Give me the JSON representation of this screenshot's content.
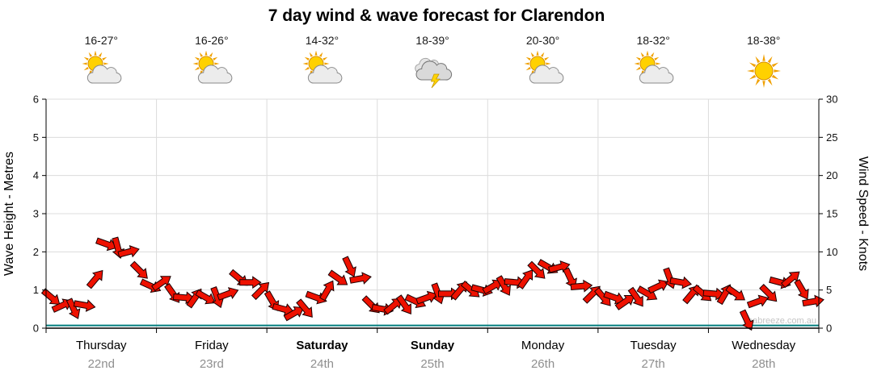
{
  "title": "7 day wind & wave forecast for Clarendon",
  "watermark": "seabreeze.com.au",
  "colors": {
    "wind_arrow": "#ee1100",
    "wind_arrow_outline": "#1a0000",
    "wave_line": "#007d7d",
    "grid": "#dcdcdc",
    "axis": "#000000",
    "date_text": "#8f8f8f",
    "day_text": "#000000",
    "watermark_text": "#c4c4c4"
  },
  "days": [
    {
      "name": "Thursday",
      "date": "22nd",
      "temp": "16-27°",
      "icon": "sun-cloud",
      "weekend": false
    },
    {
      "name": "Friday",
      "date": "23rd",
      "temp": "16-26°",
      "icon": "sun-cloud",
      "weekend": false
    },
    {
      "name": "Saturday",
      "date": "24th",
      "temp": "14-32°",
      "icon": "sun-cloud",
      "weekend": true
    },
    {
      "name": "Sunday",
      "date": "25th",
      "temp": "18-39°",
      "icon": "storm",
      "weekend": true
    },
    {
      "name": "Monday",
      "date": "26th",
      "temp": "20-30°",
      "icon": "sun-cloud",
      "weekend": false
    },
    {
      "name": "Tuesday",
      "date": "27th",
      "temp": "18-32°",
      "icon": "sun-cloud",
      "weekend": false
    },
    {
      "name": "Wednesday",
      "date": "28th",
      "temp": "18-38°",
      "icon": "sun",
      "weekend": false
    }
  ],
  "chart_data": {
    "type": "line",
    "title": "7 day wind & wave forecast for Clarendon",
    "x_axis": {
      "days": [
        "Thursday",
        "Friday",
        "Saturday",
        "Sunday",
        "Monday",
        "Tuesday",
        "Wednesday"
      ],
      "dates": [
        "22nd",
        "23rd",
        "24th",
        "25th",
        "26th",
        "27th",
        "28th"
      ],
      "range_days": [
        0,
        7
      ]
    },
    "y_left": {
      "label": "Wave Height - Metres",
      "range": [
        0,
        6
      ],
      "ticks": [
        0,
        1,
        2,
        3,
        4,
        5,
        6
      ]
    },
    "y_right": {
      "label": "Wind Speed - Knots",
      "range": [
        0,
        30
      ],
      "ticks": [
        0,
        5,
        10,
        15,
        20,
        25,
        30
      ]
    },
    "grid": true,
    "series": [
      {
        "name": "Wind Speed",
        "unit": "knots",
        "axis": "right",
        "style": "wind-arrows",
        "color": "#ee1100",
        "x_start_day": 0.05,
        "x_step_day": 0.1,
        "values_knots": [
          4,
          3,
          2.5,
          3,
          6.5,
          11,
          10.5,
          10,
          7.5,
          5.5,
          6,
          4.5,
          4,
          4,
          4,
          4,
          4.5,
          6.5,
          6,
          5,
          3.5,
          2.5,
          2,
          2.5,
          4,
          5,
          6.5,
          8,
          6.5,
          3,
          2.5,
          3,
          3,
          3.5,
          4,
          4.5,
          4.5,
          5,
          5,
          5,
          5.5,
          5.5,
          6,
          6.5,
          7.5,
          8,
          8,
          6.5,
          5.5,
          4.5,
          4,
          4,
          3.5,
          4,
          4.5,
          5.5,
          6.5,
          6,
          4.5,
          4.5,
          4.5,
          4.5,
          4.5,
          1,
          3.5,
          4.5,
          6,
          6.5,
          5,
          3.5
        ],
        "arrow_angles_deg": [
          40,
          -25,
          65,
          10,
          -50,
          20,
          75,
          -15,
          45,
          25,
          -35,
          55,
          5,
          -55,
          30,
          70,
          -20,
          40,
          0,
          -45,
          60,
          15,
          -30,
          50,
          20,
          -60,
          35,
          65,
          -10,
          45,
          10,
          -40,
          55,
          25,
          -20,
          70,
          0,
          -50,
          40,
          15,
          -30,
          60,
          5,
          -55,
          45,
          30,
          -15,
          65,
          -5,
          -45,
          50,
          20,
          -35,
          55,
          30,
          -25,
          70,
          10,
          -50,
          40,
          5,
          -60,
          35,
          65,
          -20,
          45,
          15,
          -40,
          60,
          -10
        ]
      },
      {
        "name": "Wave Height",
        "unit": "metres",
        "axis": "left",
        "style": "line",
        "color": "#007d7d",
        "x_day": [
          0,
          7
        ],
        "values_metres": [
          0.07,
          0.07
        ]
      }
    ]
  }
}
